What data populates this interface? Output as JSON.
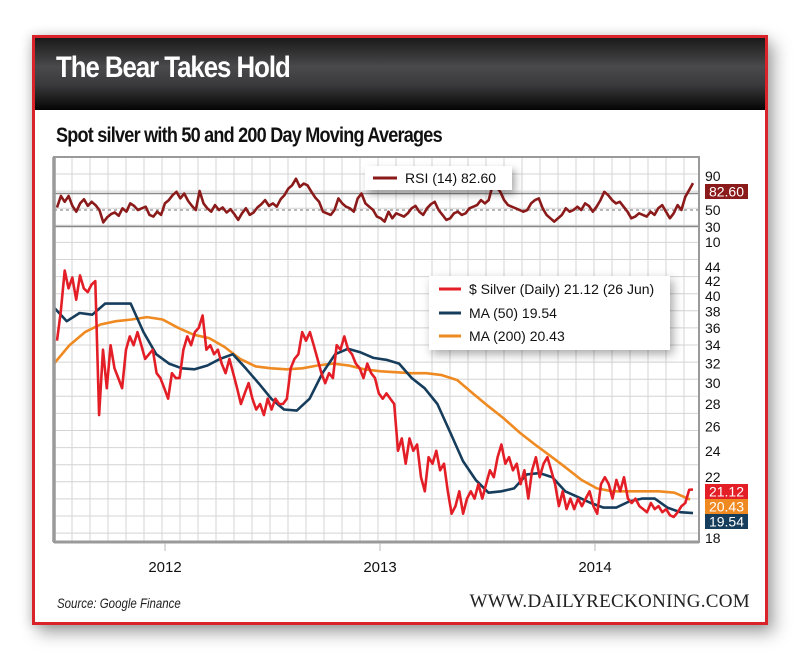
{
  "header": {
    "title": "The Bear Takes Hold"
  },
  "subtitle": "Spot silver with 50 and 200 Day Moving Averages",
  "footer": {
    "source": "Source: Google Finance",
    "site": "WWW.DAILYRECKONING.COM"
  },
  "colors": {
    "frame": "#d9222a",
    "silver": "#e31e26",
    "ma50": "#163d5c",
    "ma200": "#ef8a22",
    "rsi": "#8b1a1a",
    "grid": "#d4d4d4",
    "axis": "#9a9a9a"
  },
  "chart_data": [
    {
      "type": "line",
      "title": "RSI (14)",
      "legend": [
        {
          "label": "RSI (14) 82.60",
          "color": "#8b1a1a"
        }
      ],
      "legend_position": "top-right",
      "ylim": [
        10,
        90
      ],
      "y_ticks": [
        "90",
        "50",
        "30",
        "10"
      ],
      "reference_lines": [
        70,
        50,
        30
      ],
      "last_value_label": "82.60",
      "series": [
        {
          "name": "RSI (14)",
          "values": [
            53,
            67,
            60,
            67,
            55,
            48,
            58,
            63,
            55,
            60,
            56,
            50,
            35,
            41,
            45,
            47,
            43,
            52,
            48,
            58,
            55,
            50,
            52,
            54,
            44,
            42,
            48,
            44,
            58,
            62,
            68,
            72,
            64,
            70,
            61,
            55,
            50,
            73,
            58,
            52,
            48,
            56,
            50,
            53,
            47,
            51,
            45,
            38,
            46,
            52,
            44,
            47,
            53,
            57,
            62,
            55,
            58,
            54,
            63,
            68,
            76,
            80,
            88,
            78,
            82,
            80,
            72,
            65,
            60,
            48,
            46,
            44,
            50,
            64,
            58,
            54,
            52,
            48,
            64,
            70,
            58,
            54,
            50,
            42,
            40,
            36,
            48,
            40,
            46,
            44,
            42,
            46,
            52,
            55,
            48,
            44,
            52,
            57,
            60,
            50,
            44,
            38,
            40,
            46,
            48,
            44,
            46,
            52,
            54,
            56,
            62,
            58,
            62,
            80,
            78,
            72,
            62,
            56,
            54,
            52,
            50,
            48,
            50,
            58,
            62,
            64,
            52,
            44,
            40,
            36,
            40,
            44,
            52,
            48,
            50,
            54,
            50,
            58,
            55,
            48,
            54,
            62,
            72,
            68,
            62,
            58,
            60,
            54,
            48,
            40,
            42,
            46,
            44,
            42,
            48,
            44,
            52,
            56,
            48,
            40,
            46,
            56,
            50,
            66,
            74,
            82.6
          ]
        }
      ]
    },
    {
      "type": "line",
      "title": "Spot silver with 50 and 200 Day Moving Averages",
      "x_ticks": [
        "2012",
        "2013",
        "2014"
      ],
      "y_scale": "log",
      "ylim": [
        18,
        44
      ],
      "y_ticks": [
        "44",
        "42",
        "40",
        "38",
        "36",
        "34",
        "32",
        "30",
        "28",
        "26",
        "24",
        "22",
        "18"
      ],
      "last_value_labels": [
        {
          "value": "21.12",
          "color": "#e31e26"
        },
        {
          "value": "20.43",
          "color": "#ef8a22"
        },
        {
          "value": "19.54",
          "color": "#163d5c"
        }
      ],
      "legend_position": "top-right",
      "series": [
        {
          "name": "$ Silver (Daily)",
          "label": "$ Silver (Daily) 21.12 (26 Jun)",
          "color": "#e31e26",
          "values": [
            34.5,
            38,
            43.5,
            41,
            42.5,
            39.5,
            42.8,
            41,
            40.5,
            41.5,
            42,
            27,
            33.5,
            29.5,
            34,
            31.5,
            30.5,
            29.5,
            33.5,
            35,
            34,
            35.5,
            34,
            32.5,
            33,
            33.5,
            31,
            30.5,
            29.5,
            28.5,
            31,
            30.5,
            30.5,
            33.5,
            35,
            34,
            35.5,
            36,
            37.5,
            33.5,
            34,
            33,
            33.5,
            32,
            31,
            32.5,
            31,
            29.5,
            28,
            29,
            30,
            28.5,
            27.5,
            28,
            27,
            28.5,
            27.5,
            28.5,
            28,
            28,
            28.5,
            31.5,
            32.5,
            33,
            35.5,
            34.5,
            35.5,
            34,
            32.5,
            31,
            30,
            31,
            30.5,
            34,
            33.5,
            35,
            33.5,
            33,
            32,
            31.5,
            30.5,
            32,
            31,
            30.5,
            29,
            28.5,
            29,
            28.5,
            28,
            24,
            25,
            23,
            25,
            24,
            24.5,
            22,
            21,
            23.5,
            23,
            24,
            22.5,
            23,
            21,
            19.5,
            20,
            21,
            19.5,
            20.5,
            21,
            20.5,
            21.5,
            20.5,
            21.5,
            22.5,
            22,
            23.5,
            24.5,
            23,
            23.5,
            22.5,
            23,
            21.5,
            22.5,
            20.5,
            22.5,
            23.5,
            22,
            23,
            23.5,
            22.5,
            21.5,
            20,
            21,
            19.8,
            20.5,
            19.8,
            20.5,
            20,
            20.5,
            21,
            20,
            19.5,
            21.5,
            22,
            21.5,
            20.5,
            21.8,
            21,
            22,
            20.5,
            20.2,
            20.5,
            20,
            19.8,
            19.6,
            20.2,
            19.8,
            20,
            19.6,
            19.8,
            19.4,
            19.3,
            19.6,
            20,
            20.2,
            21.1,
            21.12
          ]
        },
        {
          "name": "MA (50)",
          "label": "MA (50) 19.54",
          "color": "#163d5c",
          "values": [
            38.5,
            36.8,
            37.8,
            37.6,
            39,
            39,
            39,
            35.5,
            33,
            32,
            31.5,
            31.4,
            31.8,
            32.5,
            33,
            31.5,
            30,
            28.5,
            27.5,
            27.4,
            28.5,
            31,
            33,
            33.6,
            33.2,
            32.6,
            32.4,
            32,
            30.5,
            29.5,
            28,
            25.5,
            23.2,
            21.8,
            20.9,
            21,
            21.2,
            22.2,
            22.3,
            22,
            21,
            20.6,
            20.2,
            19.9,
            19.9,
            20.3,
            20.5,
            20.5,
            19.9,
            19.6,
            19.54
          ]
        },
        {
          "name": "MA (200)",
          "label": "MA (200) 20.43",
          "color": "#ef8a22",
          "values": [
            32,
            34,
            35.5,
            36.4,
            36.8,
            37,
            37.3,
            37,
            36,
            35.2,
            34.8,
            33.8,
            32.5,
            31.7,
            31.5,
            31.4,
            31.5,
            31.8,
            32,
            31.8,
            31.4,
            31.2,
            31.1,
            31,
            31,
            30.8,
            30.3,
            29,
            27.8,
            26.7,
            25.5,
            24.5,
            23.6,
            22.7,
            21.8,
            21.2,
            21,
            21,
            21,
            21,
            20.9,
            20.43
          ]
        }
      ]
    }
  ]
}
